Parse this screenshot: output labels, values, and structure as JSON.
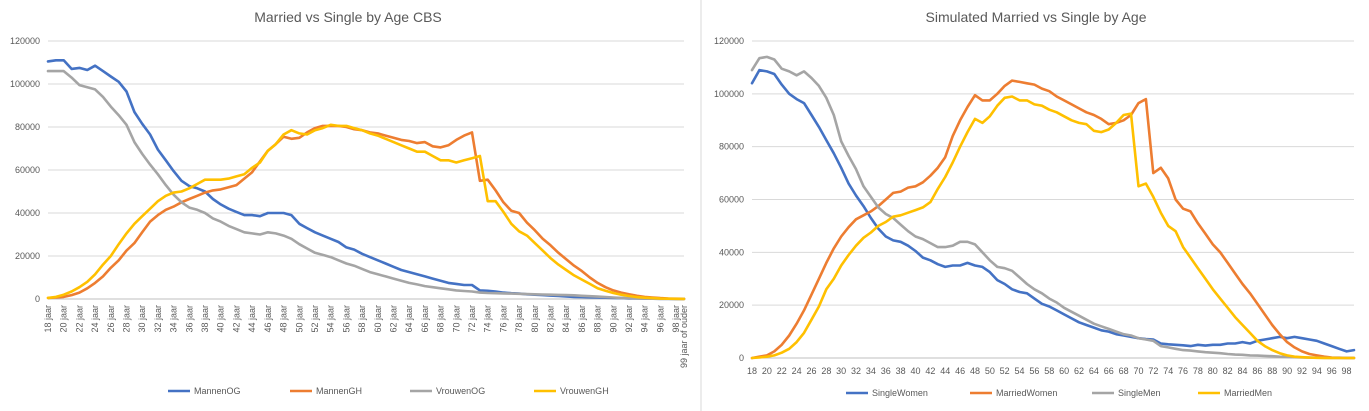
{
  "chart_data": [
    {
      "type": "line",
      "title": "Married vs Single by Age CBS",
      "xlabel": "",
      "ylabel": "",
      "ylim": [
        0,
        120000
      ],
      "yticks": [
        "0",
        "20000",
        "40000",
        "60000",
        "80000",
        "100000",
        "120000"
      ],
      "x": [
        18,
        19,
        20,
        21,
        22,
        23,
        24,
        25,
        26,
        27,
        28,
        29,
        30,
        31,
        32,
        33,
        34,
        35,
        36,
        37,
        38,
        39,
        40,
        41,
        42,
        43,
        44,
        45,
        46,
        47,
        48,
        49,
        50,
        51,
        52,
        53,
        54,
        55,
        56,
        57,
        58,
        59,
        60,
        61,
        62,
        63,
        64,
        65,
        66,
        67,
        68,
        69,
        70,
        71,
        72,
        73,
        74,
        75,
        76,
        77,
        78,
        79,
        80,
        81,
        82,
        83,
        84,
        85,
        86,
        87,
        88,
        89,
        90,
        91,
        92,
        93,
        94,
        95,
        96,
        97,
        98,
        99
      ],
      "xtick_labels": [
        "18 jaar",
        "20 jaar",
        "22 jaar",
        "24 jaar",
        "26 jaar",
        "28 jaar",
        "30 jaar",
        "32 jaar",
        "34 jaar",
        "36 jaar",
        "38 jaar",
        "40 jaar",
        "42 jaar",
        "44 jaar",
        "46 jaar",
        "48 jaar",
        "50 jaar",
        "52 jaar",
        "54 jaar",
        "56 jaar",
        "58 jaar",
        "60 jaar",
        "62 jaar",
        "64 jaar",
        "66 jaar",
        "68 jaar",
        "70 jaar",
        "72 jaar",
        "74 jaar",
        "76 jaar",
        "78 jaar",
        "80 jaar",
        "82 jaar",
        "84 jaar",
        "86 jaar",
        "88 jaar",
        "90 jaar",
        "92 jaar",
        "94 jaar",
        "96 jaar",
        "98 jaar",
        "99 jaar of ouder"
      ],
      "grid": true,
      "legend_position": "bottom",
      "series": [
        {
          "name": "MannenOG",
          "color": "#4472c4",
          "values": [
            110500,
            111000,
            111000,
            107000,
            107500,
            106500,
            108500,
            106000,
            103500,
            101000,
            96500,
            87000,
            81500,
            76500,
            69500,
            64500,
            59500,
            55000,
            52500,
            51500,
            50000,
            46500,
            44000,
            42000,
            40500,
            39000,
            39000,
            38500,
            40000,
            40000,
            40000,
            39000,
            35000,
            33000,
            31000,
            29500,
            28000,
            26500,
            24000,
            23000,
            21000,
            19500,
            18000,
            16500,
            15000,
            13500,
            12500,
            11500,
            10500,
            9500,
            8500,
            7500,
            7000,
            6500,
            6500,
            4000,
            3800,
            3500,
            3000,
            2700,
            2500,
            2200,
            2000,
            1800,
            1600,
            1400,
            1200,
            1000,
            900,
            800,
            700,
            600,
            500,
            400,
            300,
            250,
            200,
            150,
            100,
            80,
            60,
            40
          ]
        },
        {
          "name": "MannenGH",
          "color": "#ed7d31",
          "values": [
            500,
            700,
            1000,
            1800,
            3000,
            5000,
            7500,
            10500,
            14500,
            18000,
            22500,
            26000,
            31000,
            36000,
            39000,
            41500,
            43000,
            45000,
            46500,
            48000,
            49500,
            50500,
            51000,
            52000,
            53000,
            56000,
            59000,
            64000,
            69000,
            72000,
            75500,
            74500,
            75000,
            77500,
            79500,
            80500,
            80500,
            80500,
            80000,
            79000,
            78500,
            77500,
            77000,
            76000,
            75000,
            74000,
            73500,
            72500,
            73000,
            71000,
            70500,
            71500,
            74000,
            76000,
            77500,
            55000,
            55500,
            50500,
            45000,
            41000,
            40000,
            35500,
            32000,
            28000,
            25000,
            21500,
            18500,
            15500,
            13000,
            10000,
            7500,
            5500,
            4000,
            3000,
            2200,
            1500,
            1000,
            700,
            400,
            250,
            150,
            100
          ]
        },
        {
          "name": "VrouwenOG",
          "color": "#a5a5a5",
          "values": [
            106000,
            106000,
            106000,
            103000,
            99500,
            98500,
            97500,
            94000,
            89500,
            85500,
            81000,
            73000,
            67500,
            62500,
            58000,
            53000,
            48500,
            45000,
            42500,
            41500,
            40000,
            37500,
            36000,
            34000,
            32500,
            31000,
            30500,
            30000,
            31000,
            30500,
            29500,
            28000,
            25500,
            23500,
            21500,
            20500,
            19500,
            18000,
            16500,
            15500,
            14000,
            12500,
            11500,
            10500,
            9500,
            8500,
            7500,
            6800,
            6000,
            5500,
            5000,
            4500,
            4000,
            3700,
            3500,
            3000,
            2800,
            2700,
            2600,
            2500,
            2400,
            2300,
            2200,
            2100,
            2000,
            1900,
            1800,
            1700,
            1500,
            1300,
            1100,
            900,
            700,
            500,
            400,
            300,
            200,
            150,
            100,
            80,
            60,
            40
          ]
        },
        {
          "name": "VrouwenGH",
          "color": "#ffc000",
          "values": [
            500,
            1000,
            2000,
            3500,
            5500,
            8000,
            11500,
            16000,
            20000,
            25500,
            30500,
            35000,
            38500,
            42000,
            45500,
            48000,
            49500,
            50000,
            51500,
            53500,
            55500,
            55500,
            55500,
            56000,
            57000,
            58000,
            61000,
            63500,
            69000,
            72000,
            76500,
            78500,
            77000,
            76500,
            78500,
            79500,
            81000,
            80500,
            80500,
            79500,
            78500,
            77000,
            76000,
            74500,
            73000,
            71500,
            70000,
            68500,
            68500,
            66500,
            64500,
            64500,
            63500,
            64500,
            65500,
            66500,
            45500,
            45500,
            40500,
            35000,
            31500,
            29500,
            26000,
            22500,
            19000,
            16000,
            13500,
            11000,
            9000,
            7000,
            5000,
            3800,
            2800,
            2000,
            1400,
            900,
            600,
            400,
            200,
            150,
            100,
            50
          ]
        }
      ]
    },
    {
      "type": "line",
      "title": "Simulated Married vs Single by Age",
      "xlabel": "",
      "ylabel": "",
      "ylim": [
        0,
        120000
      ],
      "yticks": [
        "0",
        "20000",
        "40000",
        "60000",
        "80000",
        "100000",
        "120000"
      ],
      "x": [
        18,
        19,
        20,
        21,
        22,
        23,
        24,
        25,
        26,
        27,
        28,
        29,
        30,
        31,
        32,
        33,
        34,
        35,
        36,
        37,
        38,
        39,
        40,
        41,
        42,
        43,
        44,
        45,
        46,
        47,
        48,
        49,
        50,
        51,
        52,
        53,
        54,
        55,
        56,
        57,
        58,
        59,
        60,
        61,
        62,
        63,
        64,
        65,
        66,
        67,
        68,
        69,
        70,
        71,
        72,
        73,
        74,
        75,
        76,
        77,
        78,
        79,
        80,
        81,
        82,
        83,
        84,
        85,
        86,
        87,
        88,
        89,
        90,
        91,
        92,
        93,
        94,
        95,
        96,
        97,
        98,
        99
      ],
      "xtick_labels": [
        "18",
        "20",
        "22",
        "24",
        "26",
        "28",
        "30",
        "32",
        "34",
        "36",
        "38",
        "40",
        "42",
        "44",
        "46",
        "48",
        "50",
        "52",
        "54",
        "56",
        "58",
        "60",
        "62",
        "64",
        "66",
        "68",
        "70",
        "72",
        "74",
        "76",
        "78",
        "80",
        "82",
        "84",
        "86",
        "88",
        "90",
        "92",
        "94",
        "96",
        "98"
      ],
      "grid": true,
      "legend_position": "bottom",
      "series": [
        {
          "name": "SingleWomen",
          "color": "#4472c4",
          "values": [
            104000,
            109000,
            108500,
            107500,
            103500,
            100000,
            98000,
            96500,
            92000,
            87500,
            82500,
            77500,
            72000,
            66000,
            61500,
            57500,
            53000,
            49000,
            46000,
            44500,
            44000,
            42500,
            40500,
            38000,
            37000,
            35500,
            34500,
            35000,
            35000,
            36000,
            35000,
            34500,
            32500,
            29500,
            28000,
            26000,
            25000,
            24500,
            22500,
            20500,
            19500,
            18000,
            16500,
            15000,
            13500,
            12500,
            11500,
            10500,
            10000,
            9000,
            8500,
            8000,
            7500,
            7200,
            7000,
            5500,
            5200,
            5000,
            4800,
            4500,
            5000,
            4700,
            5000,
            5000,
            5500,
            5500,
            6000,
            5500,
            6500,
            7000,
            7500,
            8000,
            7500,
            8000,
            7500,
            7000,
            6500,
            5500,
            4500,
            3500,
            2500,
            3000
          ]
        },
        {
          "name": "MarriedWomen",
          "color": "#ed7d31",
          "values": [
            0,
            500,
            1000,
            2500,
            5000,
            8500,
            13000,
            18000,
            24000,
            30000,
            36000,
            41500,
            46000,
            49500,
            52500,
            54000,
            55500,
            57500,
            60000,
            62500,
            63000,
            64500,
            65000,
            66500,
            69000,
            72000,
            76000,
            84000,
            90000,
            95000,
            99500,
            97500,
            97500,
            100000,
            103000,
            105000,
            104500,
            104000,
            103500,
            102000,
            101000,
            99000,
            97500,
            96000,
            94500,
            93000,
            92000,
            90500,
            88500,
            89000,
            90000,
            92000,
            96500,
            98000,
            70000,
            72000,
            68000,
            60000,
            56500,
            55500,
            51000,
            47000,
            43000,
            40000,
            36000,
            32000,
            28000,
            24500,
            20500,
            16500,
            12500,
            9000,
            6000,
            4000,
            2500,
            1500,
            1000,
            500,
            200,
            100,
            50,
            20
          ]
        },
        {
          "name": "SingleMen",
          "color": "#a5a5a5",
          "values": [
            109000,
            113500,
            114000,
            113000,
            109500,
            108500,
            107000,
            108500,
            106000,
            103000,
            98500,
            92000,
            82000,
            76500,
            71500,
            65000,
            61000,
            57000,
            54500,
            53000,
            50500,
            48000,
            46000,
            45000,
            43500,
            42000,
            42000,
            42500,
            44000,
            44000,
            43000,
            40000,
            37000,
            34500,
            34000,
            33000,
            30500,
            28000,
            26000,
            24500,
            22500,
            21000,
            19000,
            17500,
            16000,
            14500,
            13000,
            12000,
            11000,
            10000,
            9000,
            8500,
            7500,
            7000,
            6500,
            4500,
            4000,
            3500,
            3000,
            2800,
            2500,
            2200,
            2000,
            1800,
            1500,
            1300,
            1200,
            1000,
            900,
            800,
            700,
            500,
            400,
            300,
            200,
            150,
            100,
            80,
            50,
            30,
            20,
            10
          ]
        },
        {
          "name": "MarriedMen",
          "color": "#ffc000",
          "values": [
            0,
            200,
            500,
            1000,
            2000,
            3500,
            6000,
            9500,
            14500,
            19500,
            26000,
            30000,
            35000,
            39000,
            42500,
            45500,
            47500,
            50000,
            51500,
            53500,
            54000,
            55000,
            56000,
            57000,
            59000,
            64000,
            68500,
            74000,
            80000,
            85500,
            90500,
            89000,
            91500,
            95500,
            98500,
            99000,
            97500,
            97500,
            96000,
            95500,
            94000,
            93000,
            91500,
            90000,
            89000,
            88500,
            86000,
            85500,
            86500,
            89000,
            92000,
            92500,
            65000,
            66000,
            61000,
            55000,
            50000,
            48000,
            42000,
            38000,
            34000,
            30000,
            26000,
            22500,
            19000,
            15500,
            12500,
            9500,
            6500,
            4500,
            3000,
            1800,
            1000,
            500,
            300,
            150,
            80,
            40,
            20,
            10,
            5,
            0
          ]
        }
      ]
    }
  ]
}
